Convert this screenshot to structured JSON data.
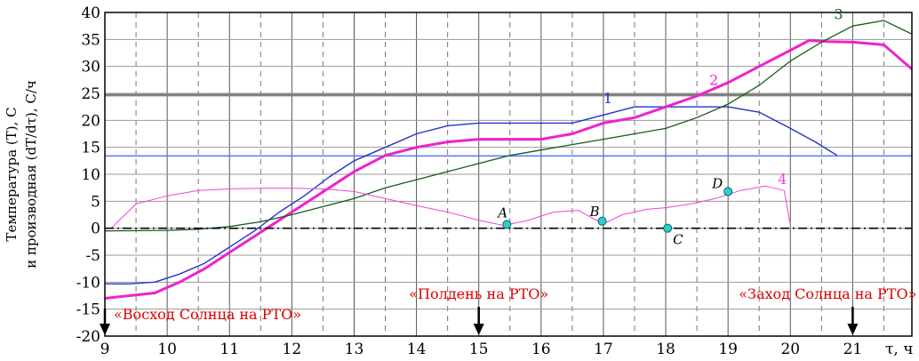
{
  "chart_data": {
    "type": "line",
    "xlabel": "τ, ч",
    "ylabel_line1": "Температура (T), С",
    "ylabel_line2": "и производная (dT/dτ), С/ч",
    "xlim": [
      9,
      21.95
    ],
    "ylim": [
      -20,
      40
    ],
    "x_ticks": [
      9,
      10,
      11,
      12,
      13,
      14,
      15,
      16,
      17,
      18,
      19,
      20,
      21
    ],
    "y_ticks": [
      -20,
      -15,
      -10,
      -5,
      0,
      5,
      10,
      15,
      20,
      25,
      30,
      35,
      40
    ],
    "grid": true,
    "ref_lines": [
      {
        "name": "",
        "value": 24.7,
        "color": "#808080"
      },
      {
        "name": "",
        "value": 13.4,
        "color": "#5577ff"
      }
    ],
    "series": [
      {
        "name": "1",
        "color": "#2233cc",
        "x": [
          9.0,
          9.4,
          9.8,
          10.2,
          10.6,
          11.0,
          11.4,
          11.8,
          12.2,
          12.6,
          13.0,
          13.5,
          14.0,
          14.5,
          15.0,
          15.5,
          16.0,
          16.5,
          17.0,
          17.5,
          18.0,
          18.5,
          19.0,
          19.5,
          20.0,
          20.4,
          20.75
        ],
        "y": [
          -10.3,
          -10.3,
          -10.0,
          -8.5,
          -6.5,
          -3.5,
          -0.5,
          3.0,
          6.0,
          9.5,
          12.5,
          15.0,
          17.5,
          19.0,
          19.5,
          19.5,
          19.5,
          19.5,
          21.0,
          22.5,
          22.5,
          22.5,
          22.5,
          21.5,
          18.5,
          16.0,
          13.5
        ]
      },
      {
        "name": "2",
        "color": "#ee22cc",
        "x": [
          9.0,
          9.4,
          9.8,
          10.2,
          10.6,
          11.0,
          11.4,
          11.8,
          12.2,
          12.6,
          13.0,
          13.5,
          14.0,
          14.5,
          15.0,
          15.5,
          16.0,
          16.5,
          17.0,
          17.5,
          18.0,
          18.5,
          19.0,
          19.5,
          20.0,
          20.3,
          20.6,
          21.0,
          21.5,
          21.95
        ],
        "y": [
          -13.0,
          -12.5,
          -12.0,
          -10.0,
          -7.5,
          -4.5,
          -1.5,
          1.5,
          4.5,
          7.5,
          10.5,
          13.5,
          15.0,
          16.0,
          16.5,
          16.5,
          16.5,
          17.5,
          19.5,
          20.5,
          22.5,
          24.5,
          27.0,
          30.0,
          33.0,
          34.8,
          34.6,
          34.5,
          34.0,
          29.5
        ]
      },
      {
        "name": "3",
        "color": "#1a5a1a",
        "x": [
          9.0,
          10.0,
          10.5,
          11.0,
          11.5,
          12.0,
          12.5,
          13.0,
          13.5,
          14.0,
          14.5,
          15.0,
          15.5,
          16.0,
          16.5,
          17.0,
          17.5,
          18.0,
          18.5,
          19.0,
          19.5,
          20.0,
          20.5,
          21.0,
          21.5,
          21.95
        ],
        "y": [
          -0.5,
          -0.4,
          -0.2,
          0.3,
          1.2,
          2.5,
          4.0,
          5.5,
          7.5,
          9.0,
          10.5,
          12.0,
          13.5,
          14.5,
          15.5,
          16.5,
          17.5,
          18.5,
          20.5,
          23.0,
          26.5,
          31.0,
          34.5,
          37.5,
          38.5,
          36.0
        ]
      },
      {
        "name": "4",
        "color": "#ee44dd",
        "x": [
          9.1,
          9.5,
          10.0,
          10.5,
          11.0,
          11.5,
          12.0,
          12.5,
          13.0,
          13.5,
          14.0,
          14.5,
          15.0,
          15.4,
          15.8,
          16.2,
          16.6,
          16.8,
          17.0,
          17.3,
          17.7,
          18.0,
          18.4,
          18.8,
          19.2,
          19.6,
          19.9,
          20.0
        ],
        "y": [
          0.0,
          4.5,
          6.0,
          7.0,
          7.3,
          7.4,
          7.4,
          7.3,
          6.8,
          5.5,
          4.2,
          3.0,
          1.5,
          0.5,
          1.5,
          3.0,
          3.3,
          2.0,
          0.8,
          2.5,
          3.5,
          3.8,
          4.5,
          5.5,
          7.0,
          7.8,
          7.0,
          0.5
        ]
      },
      {
        "name": "",
        "color": "#000000",
        "style": "dashdot",
        "x": [
          9.0,
          21.95
        ],
        "y": [
          0.0,
          0.0
        ]
      }
    ],
    "points": [
      {
        "label": "A",
        "x": 15.45,
        "y": 0.7
      },
      {
        "label": "B",
        "x": 16.98,
        "y": 1.3
      },
      {
        "label": "C",
        "x": 18.03,
        "y": 0.0
      },
      {
        "label": "D",
        "x": 19.0,
        "y": 6.8
      }
    ],
    "annotations": [
      {
        "text": "«Восход Солнца на РТО»",
        "x": 9.0,
        "color": "#dd0000"
      },
      {
        "text": "«Полдень на РТО»",
        "x": 15.0,
        "color": "#dd0000"
      },
      {
        "text": "«Заход Солнца на РТО»",
        "x": 21.0,
        "color": "#dd0000"
      }
    ]
  }
}
